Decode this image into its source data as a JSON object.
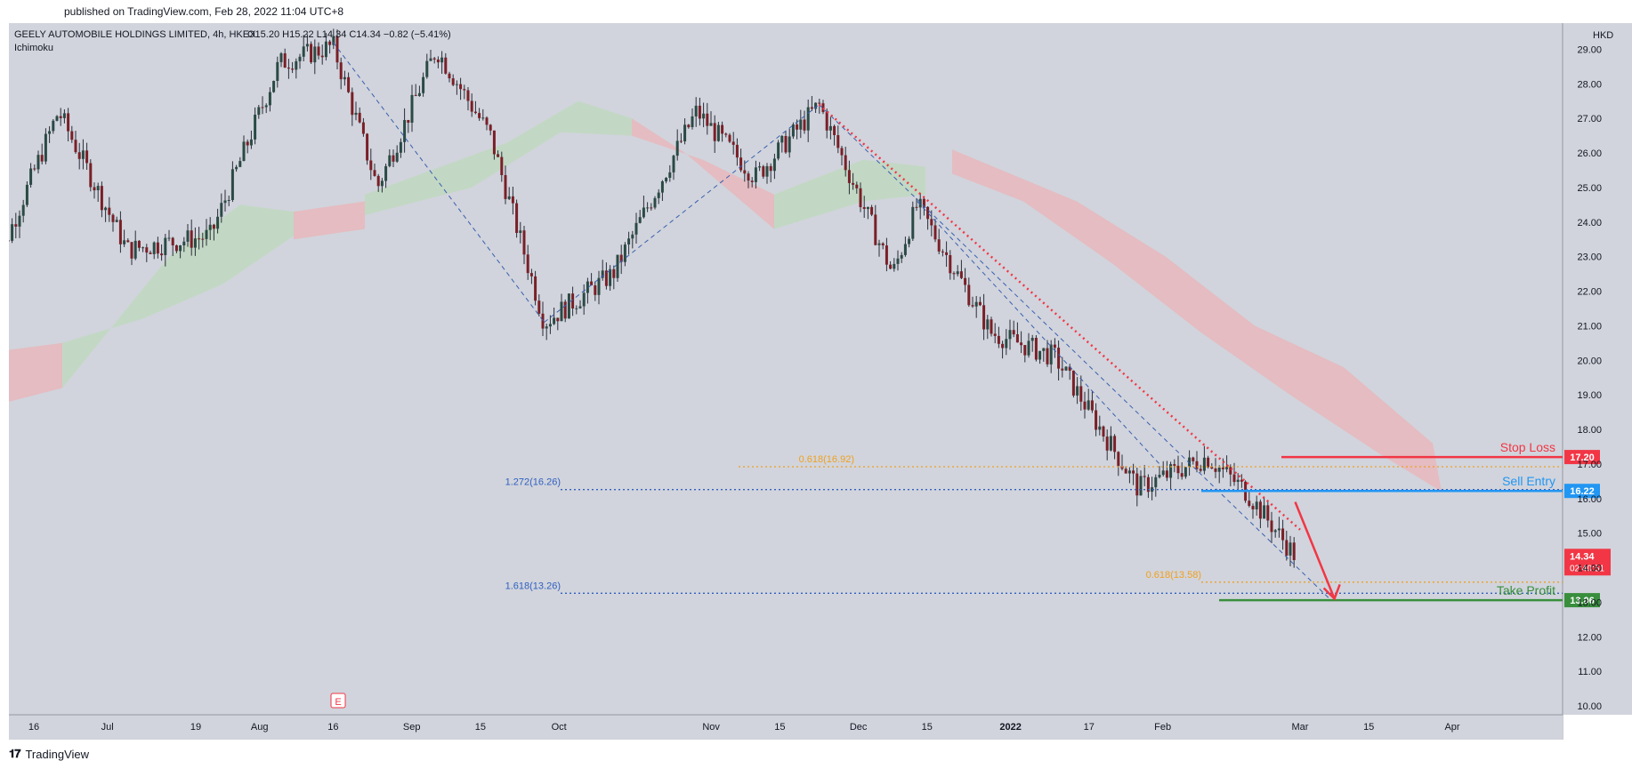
{
  "header": {
    "published": "published on TradingView.com, Feb 28, 2022 11:04 UTC+8"
  },
  "chart_data": {
    "type": "candlestick",
    "title": "GEELY AUTOMOBILE HOLDINGS LIMITED, 4h, HKEX",
    "ohlc_text": "O15.20  H15.22  L14.34  C14.34  −0.82 (−5.41%)",
    "indicator": "Ichimoku",
    "currency": "HKD",
    "ylim": [
      10.0,
      29.5
    ],
    "y_ticks": [
      "29.00",
      "28.00",
      "27.00",
      "26.00",
      "25.00",
      "24.00",
      "23.00",
      "22.00",
      "21.00",
      "20.00",
      "19.00",
      "18.00",
      "17.00",
      "16.00",
      "15.00",
      "14.00",
      "13.00",
      "12.00",
      "11.00",
      "10.00"
    ],
    "x_ticks": [
      "16",
      "Jul",
      "19",
      "Aug",
      "16",
      "Sep",
      "15",
      "Oct",
      "Nov",
      "15",
      "Dec",
      "15",
      "2022",
      "17",
      "Feb",
      "Mar",
      "15",
      "Apr"
    ],
    "price_path": [
      {
        "date": "2021-06-07",
        "close": 22.3
      },
      {
        "date": "2021-06-21",
        "close": 27.2
      },
      {
        "date": "2021-07-05",
        "close": 23.2
      },
      {
        "date": "2021-07-22",
        "close": 23.6
      },
      {
        "date": "2021-08-05",
        "close": 28.6
      },
      {
        "date": "2021-08-16",
        "close": 29.1
      },
      {
        "date": "2021-08-25",
        "close": 25.0
      },
      {
        "date": "2021-09-06",
        "close": 29.0
      },
      {
        "date": "2021-09-17",
        "close": 26.5
      },
      {
        "date": "2021-09-28",
        "close": 21.1
      },
      {
        "date": "2021-10-12",
        "close": 22.5
      },
      {
        "date": "2021-10-29",
        "close": 27.2
      },
      {
        "date": "2021-11-10",
        "close": 25.3
      },
      {
        "date": "2021-11-23",
        "close": 27.4
      },
      {
        "date": "2021-12-08",
        "close": 22.5
      },
      {
        "date": "2021-12-13",
        "close": 24.5
      },
      {
        "date": "2021-12-28",
        "close": 20.8
      },
      {
        "date": "2022-01-10",
        "close": 20.1
      },
      {
        "date": "2022-01-27",
        "close": 16.3
      },
      {
        "date": "2022-02-10",
        "close": 17.2
      },
      {
        "date": "2022-02-18",
        "close": 16.2
      },
      {
        "date": "2022-02-28",
        "close": 14.34
      }
    ],
    "last_price": "14.34",
    "countdown": "02:40:51",
    "levels": [
      {
        "name": "Stop Loss",
        "value": "17.20",
        "color": "#f23645"
      },
      {
        "name": "Sell Entry",
        "value": "16.22",
        "color": "#2196f3"
      },
      {
        "name": "Take Profit",
        "value": "13.06",
        "color": "#388e3c"
      }
    ],
    "fib_labels": [
      {
        "text": "0.618(16.92)",
        "value": 16.92,
        "color": "#f0a020"
      },
      {
        "text": "1.272(16.26)",
        "value": 16.26,
        "color": "#3060c0"
      },
      {
        "text": "0.618(13.58)",
        "value": 13.58,
        "color": "#f0a020"
      },
      {
        "text": "1.618(13.26)",
        "value": 13.26,
        "color": "#3060c0"
      }
    ],
    "earnings_marker": "E"
  },
  "footer": {
    "brand": "TradingView"
  }
}
